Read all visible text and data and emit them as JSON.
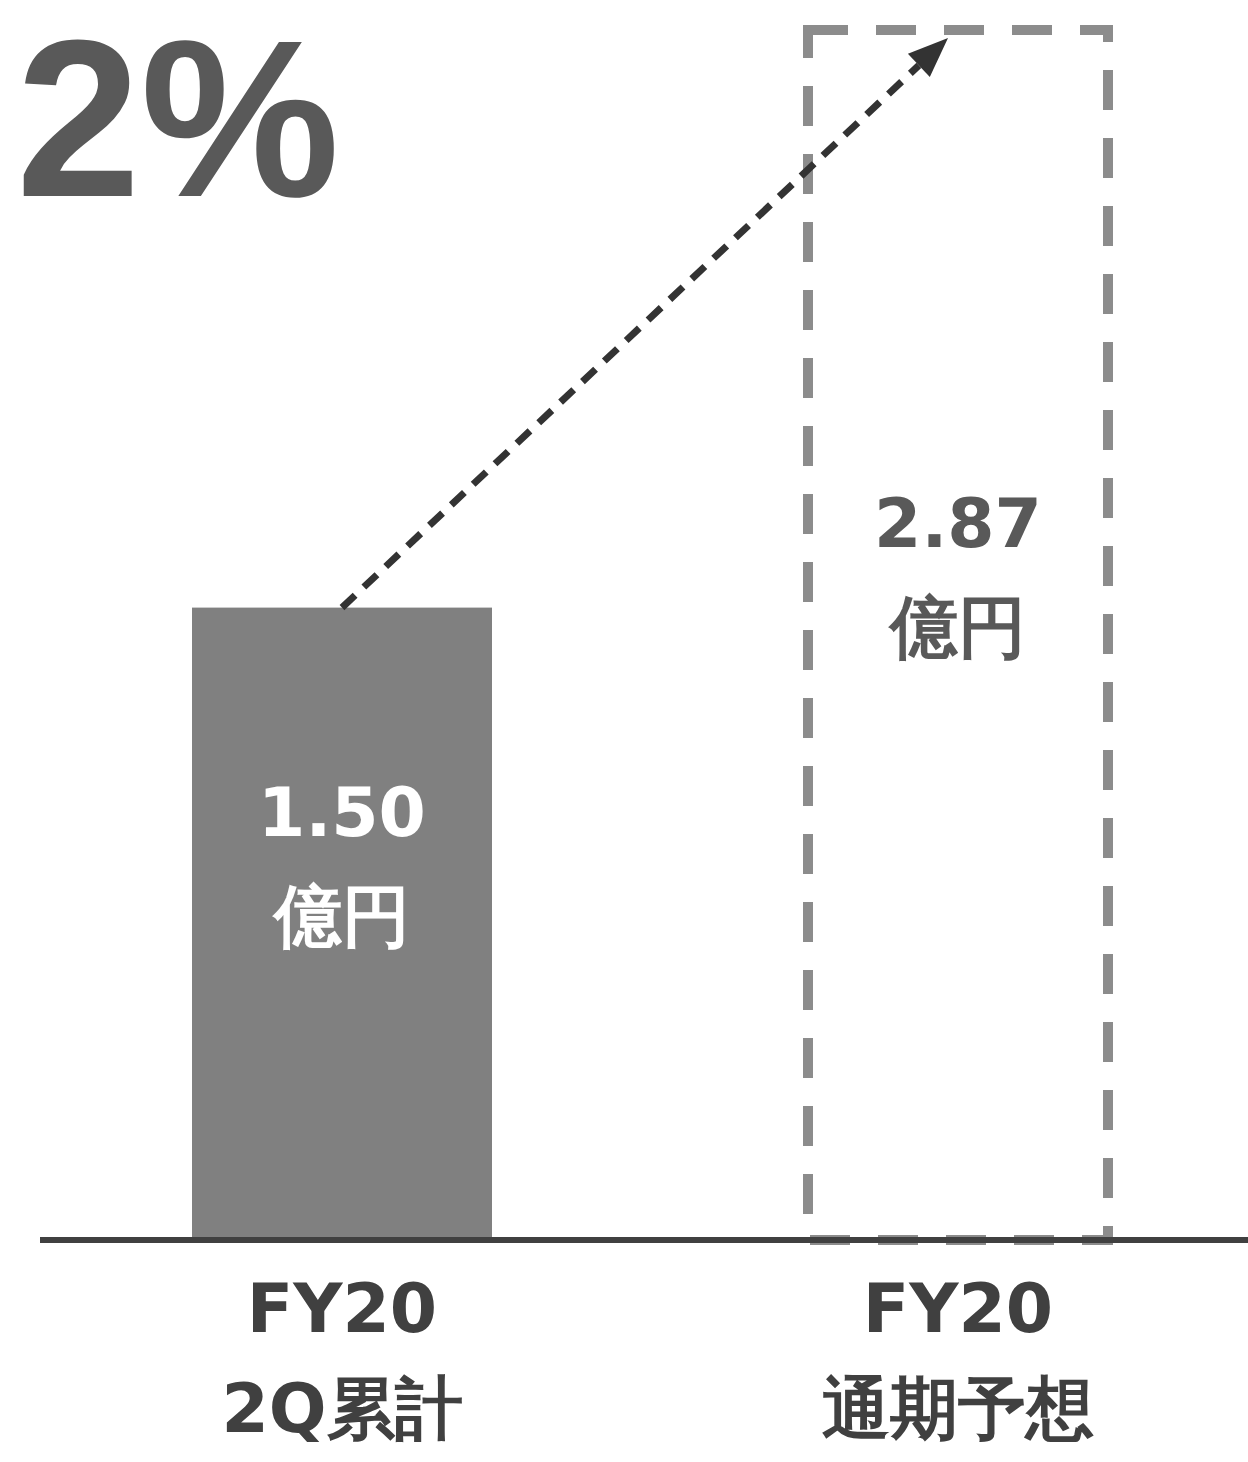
{
  "chart_data": {
    "type": "bar",
    "categories": [
      "FY20\n2Q累計",
      "FY20\n通期予想"
    ],
    "series": [
      {
        "color": "#808080",
        "values": [
          1.5,
          null
        ],
        "value_labels": [
          "1.50\n億円",
          null
        ]
      },
      {
        "color": "#8c8c8c",
        "values": [
          null,
          2.87
        ],
        "line_style": "dashed",
        "value_labels": [
          null,
          "2.87\n億円"
        ]
      }
    ],
    "annotations": [
      "2%"
    ]
  }
}
